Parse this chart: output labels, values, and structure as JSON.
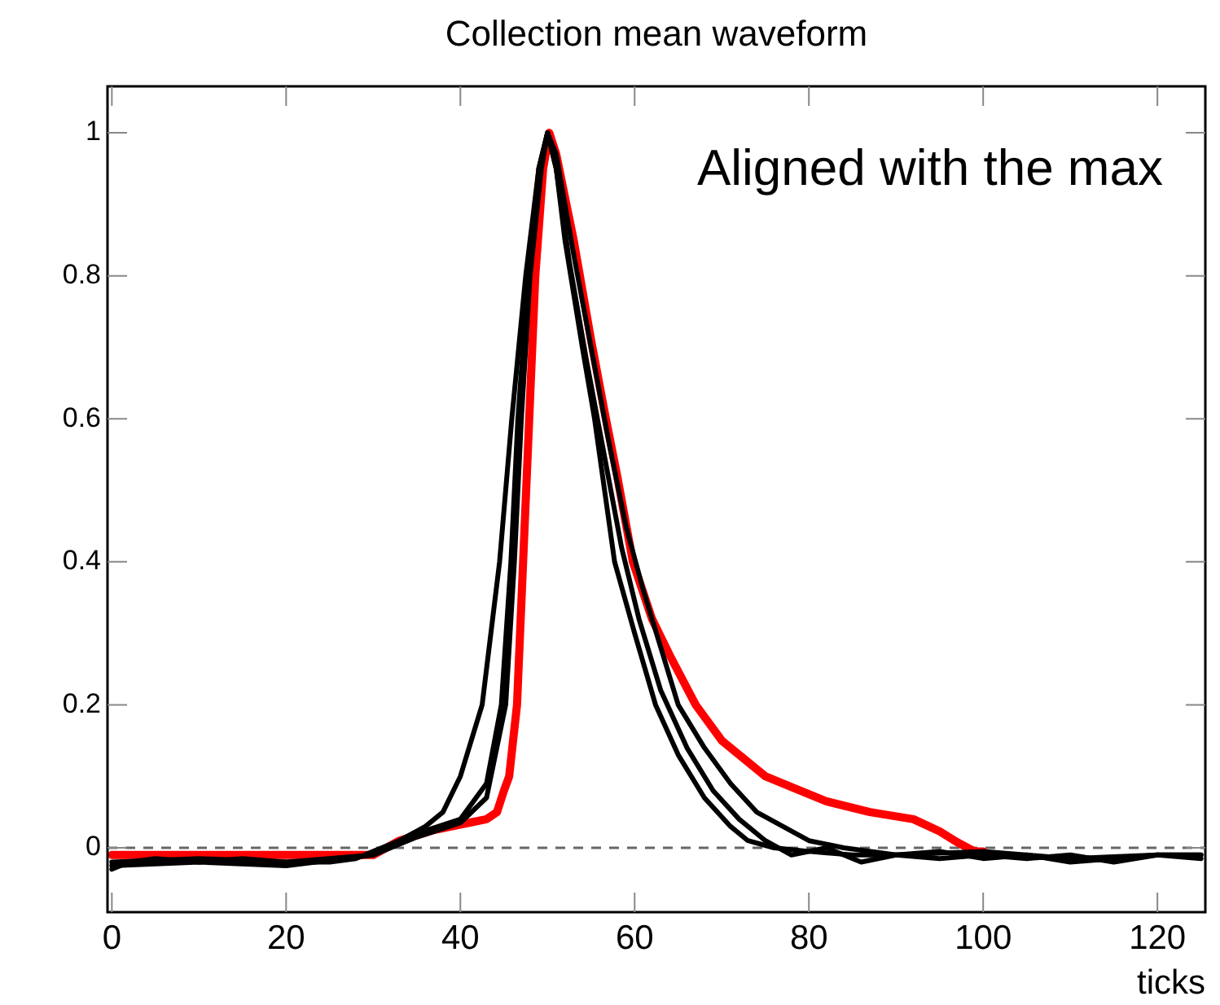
{
  "chart_data": {
    "type": "line",
    "title": "Collection mean waveform",
    "xlabel": "ticks",
    "annotations": [
      "Aligned with the max"
    ],
    "xlim": [
      -0.5,
      125.5
    ],
    "ylim": [
      -0.09,
      1.065
    ],
    "xticks": [
      0,
      20,
      40,
      60,
      80,
      100,
      120
    ],
    "yticks": [
      0,
      0.2,
      0.4,
      0.6,
      0.8,
      1
    ],
    "grid": false,
    "marker": "none",
    "line_style": "solid",
    "ref_lines": [
      {
        "axis": "y",
        "value": 0,
        "color": "#666666",
        "line_style": "dashed"
      }
    ],
    "series": [
      {
        "color": "#000000",
        "x": [
          0,
          2,
          5,
          10,
          15,
          20,
          25,
          28,
          30,
          33,
          36,
          38,
          40,
          42.5,
          44.5,
          45.9,
          47.5,
          49,
          50,
          51,
          52,
          54,
          55.4,
          57.7,
          60,
          62.4,
          65,
          68,
          71,
          73,
          76,
          80,
          85,
          90,
          95,
          100,
          105,
          110,
          115,
          120,
          125
        ],
        "values": [
          -0.03,
          -0.02,
          -0.015,
          -0.02,
          -0.015,
          -0.02,
          -0.02,
          -0.015,
          -0.005,
          0.01,
          0.03,
          0.05,
          0.1,
          0.2,
          0.4,
          0.6,
          0.8,
          0.95,
          1.0,
          0.95,
          0.85,
          0.7,
          0.6,
          0.4,
          0.3,
          0.2,
          0.13,
          0.07,
          0.03,
          0.01,
          0.0,
          -0.005,
          -0.01,
          -0.01,
          -0.015,
          -0.01,
          -0.015,
          -0.01,
          -0.02,
          -0.01,
          -0.01
        ]
      },
      {
        "color": "#000000",
        "x": [
          0,
          10,
          20,
          30,
          35,
          40,
          43,
          44.7,
          45.8,
          46.6,
          47.8,
          49,
          50,
          51,
          53,
          55,
          57,
          59,
          61,
          63,
          65,
          68,
          71,
          74,
          77,
          80,
          84,
          90,
          100,
          110,
          120,
          125
        ],
        "values": [
          -0.02,
          -0.015,
          -0.02,
          -0.01,
          0.02,
          0.04,
          0.09,
          0.2,
          0.4,
          0.6,
          0.8,
          0.95,
          1.0,
          0.97,
          0.83,
          0.7,
          0.57,
          0.45,
          0.36,
          0.28,
          0.2,
          0.14,
          0.09,
          0.05,
          0.03,
          0.01,
          0.0,
          -0.01,
          -0.005,
          -0.015,
          -0.01,
          -0.01
        ]
      },
      {
        "color": "#000000",
        "x": [
          0,
          10,
          20,
          30,
          35,
          40,
          43,
          45.2,
          46.2,
          47,
          48,
          49.3,
          50,
          51,
          52.5,
          54.5,
          56.5,
          58.5,
          60.5,
          63,
          66,
          69,
          72,
          75,
          78,
          82,
          86,
          90,
          95,
          100,
          105,
          110,
          115,
          120,
          125
        ],
        "values": [
          -0.025,
          -0.02,
          -0.025,
          -0.01,
          0.015,
          0.035,
          0.07,
          0.2,
          0.4,
          0.6,
          0.8,
          0.95,
          1.0,
          0.95,
          0.82,
          0.68,
          0.55,
          0.42,
          0.32,
          0.22,
          0.14,
          0.08,
          0.04,
          0.01,
          -0.01,
          0.0,
          -0.02,
          -0.01,
          -0.005,
          -0.015,
          -0.01,
          -0.02,
          -0.015,
          -0.01,
          -0.015
        ]
      },
      {
        "color": "#ff0000",
        "x": [
          0,
          30,
          33,
          37,
          41,
          43,
          44.2,
          45,
          45.6,
          46.5,
          47.2,
          47.9,
          48.6,
          49.5,
          50.2,
          51,
          53,
          55,
          56.7,
          58,
          59.8,
          62,
          64,
          67,
          70,
          72,
          75,
          78,
          82,
          87,
          92,
          95,
          97,
          99,
          100
        ],
        "values": [
          -0.01,
          -0.01,
          0.01,
          0.025,
          0.035,
          0.04,
          0.05,
          0.08,
          0.1,
          0.2,
          0.4,
          0.6,
          0.8,
          0.95,
          1.0,
          0.97,
          0.85,
          0.71,
          0.6,
          0.52,
          0.4,
          0.32,
          0.27,
          0.2,
          0.15,
          0.13,
          0.1,
          0.085,
          0.065,
          0.05,
          0.04,
          0.023,
          0.008,
          -0.005,
          -0.005
        ]
      }
    ]
  }
}
